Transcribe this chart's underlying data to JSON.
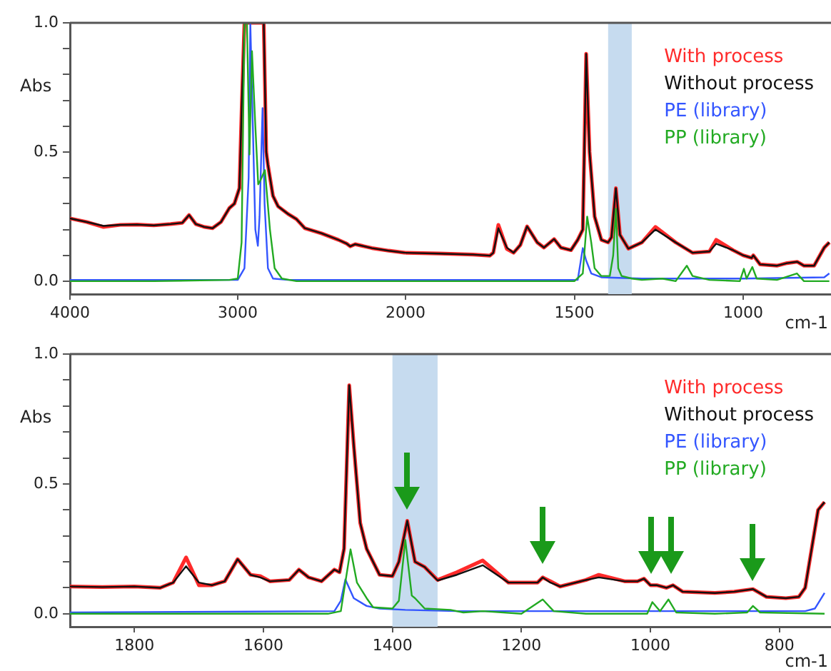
{
  "chart_data": [
    {
      "type": "line",
      "ylabel": "Abs",
      "xlim": [
        4000,
        2000
      ],
      "xticks": [
        4000,
        3000,
        2000
      ],
      "ylim": [
        -0.05,
        1.0
      ],
      "yticks": [
        {
          "value": 0,
          "label": "0.0"
        },
        {
          "value": 0.1,
          "label": null
        },
        {
          "value": 0.2,
          "label": null
        },
        {
          "value": 0.3,
          "label": null
        },
        {
          "value": 0.4,
          "label": null
        },
        {
          "value": 0.5,
          "label": "0.5"
        },
        {
          "value": 0.6,
          "label": null
        },
        {
          "value": 0.7,
          "label": null
        },
        {
          "value": 0.8,
          "label": null
        },
        {
          "value": 0.9,
          "label": null
        },
        {
          "value": 1.0,
          "label": "1.0"
        }
      ],
      "grid": false,
      "marker": "none",
      "line_style": "solid",
      "series": [
        {
          "color": "#ff2a2a",
          "x": [
            4000,
            3900,
            3800,
            3700,
            3600,
            3500,
            3400,
            3330,
            3290,
            3250,
            3200,
            3150,
            3100,
            3050,
            3020,
            2990,
            2975,
            2960,
            2900,
            2845,
            2830,
            2820,
            2790,
            2760,
            2700,
            2650,
            2600,
            2500,
            2400,
            2350,
            2330,
            2300,
            2200,
            2100,
            2000
          ],
          "values": [
            0.243,
            0.229,
            0.21,
            0.218,
            0.219,
            0.216,
            0.221,
            0.226,
            0.256,
            0.221,
            0.21,
            0.205,
            0.229,
            0.283,
            0.3,
            0.36,
            0.7,
            1.0,
            1.0,
            1.0,
            0.5,
            0.45,
            0.33,
            0.29,
            0.26,
            0.24,
            0.205,
            0.185,
            0.16,
            0.145,
            0.135,
            0.143,
            0.128,
            0.118,
            0.11
          ]
        },
        {
          "color": "#111111",
          "x": [
            4000,
            3900,
            3800,
            3700,
            3600,
            3500,
            3400,
            3330,
            3290,
            3250,
            3200,
            3150,
            3100,
            3050,
            3020,
            2990,
            2975,
            2960,
            2900,
            2845,
            2830,
            2820,
            2790,
            2760,
            2700,
            2650,
            2600,
            2500,
            2400,
            2350,
            2330,
            2300,
            2200,
            2100,
            2000
          ],
          "values": [
            0.243,
            0.229,
            0.214,
            0.218,
            0.219,
            0.216,
            0.221,
            0.226,
            0.256,
            0.221,
            0.21,
            0.205,
            0.229,
            0.283,
            0.3,
            0.36,
            0.7,
            1.0,
            1.0,
            1.0,
            0.5,
            0.45,
            0.33,
            0.29,
            0.26,
            0.24,
            0.205,
            0.185,
            0.16,
            0.145,
            0.135,
            0.143,
            0.128,
            0.118,
            0.11
          ]
        },
        {
          "color": "#3355ff",
          "x": [
            4000,
            3500,
            3000,
            2960,
            2935,
            2925,
            2920,
            2910,
            2895,
            2880,
            2870,
            2852,
            2840,
            2820,
            2790,
            2700,
            2000
          ],
          "values": [
            0.005,
            0.005,
            0.005,
            0.05,
            0.4,
            1.0,
            1.0,
            0.6,
            0.2,
            0.137,
            0.25,
            0.67,
            0.3,
            0.05,
            0.01,
            0.005,
            0.005
          ]
        },
        {
          "color": "#22aa22",
          "x": [
            4000,
            3500,
            3050,
            3000,
            2977,
            2960,
            2945,
            2930,
            2915,
            2895,
            2878,
            2865,
            2838,
            2808,
            2780,
            2737,
            2650,
            2000
          ],
          "values": [
            0.0,
            0.0,
            0.005,
            0.01,
            0.15,
            1.0,
            1.0,
            0.49,
            0.89,
            0.6,
            0.375,
            0.39,
            0.43,
            0.2,
            0.05,
            0.01,
            0.0,
            0.0
          ]
        }
      ]
    },
    {
      "type": "line",
      "xlabel": "cm-1",
      "xlim": [
        2000,
        740
      ],
      "xticks": [
        1500,
        1000
      ],
      "ylim": [
        -0.05,
        1.0
      ],
      "tick_labels": "x",
      "grid": false,
      "legend": "top right",
      "marker": "none",
      "line_style": "solid",
      "bands": [
        {
          "axis": "x",
          "from": 1400,
          "to": 1330,
          "color": "#c6dbef"
        }
      ],
      "series": [
        {
          "name": "With process",
          "color": "#ff2a2a",
          "x": [
            2000,
            1900,
            1800,
            1750,
            1740,
            1725,
            1700,
            1680,
            1660,
            1640,
            1610,
            1590,
            1560,
            1540,
            1510,
            1490,
            1475,
            1465,
            1455,
            1440,
            1420,
            1400,
            1390,
            1377,
            1365,
            1340,
            1300,
            1260,
            1200,
            1150,
            1100,
            1080,
            1030,
            1000,
            975,
            970,
            950,
            900,
            870,
            840,
            820,
            790,
            760,
            745
          ],
          "values": [
            0.11,
            0.107,
            0.103,
            0.099,
            0.11,
            0.218,
            0.125,
            0.11,
            0.14,
            0.212,
            0.15,
            0.13,
            0.163,
            0.13,
            0.12,
            0.16,
            0.2,
            0.88,
            0.5,
            0.25,
            0.16,
            0.15,
            0.17,
            0.36,
            0.18,
            0.126,
            0.15,
            0.21,
            0.15,
            0.11,
            0.115,
            0.16,
            0.12,
            0.1,
            0.09,
            0.1,
            0.065,
            0.06,
            0.07,
            0.075,
            0.06,
            0.06,
            0.13,
            0.15
          ]
        },
        {
          "name": "Without process",
          "color": "#111111",
          "x": [
            2000,
            1900,
            1800,
            1750,
            1740,
            1725,
            1700,
            1680,
            1660,
            1640,
            1610,
            1590,
            1560,
            1540,
            1510,
            1490,
            1475,
            1465,
            1455,
            1440,
            1420,
            1400,
            1390,
            1377,
            1365,
            1340,
            1300,
            1260,
            1200,
            1150,
            1100,
            1080,
            1030,
            1000,
            975,
            970,
            950,
            900,
            870,
            840,
            820,
            790,
            760,
            745
          ],
          "values": [
            0.11,
            0.107,
            0.103,
            0.099,
            0.11,
            0.205,
            0.13,
            0.11,
            0.14,
            0.212,
            0.15,
            0.13,
            0.163,
            0.13,
            0.12,
            0.16,
            0.2,
            0.88,
            0.5,
            0.25,
            0.16,
            0.15,
            0.17,
            0.36,
            0.18,
            0.126,
            0.15,
            0.2,
            0.15,
            0.11,
            0.115,
            0.145,
            0.12,
            0.1,
            0.09,
            0.1,
            0.065,
            0.06,
            0.07,
            0.075,
            0.06,
            0.06,
            0.13,
            0.15
          ]
        },
        {
          "name": "PE (library)",
          "color": "#3355ff",
          "x": [
            2000,
            1490,
            1475,
            1465,
            1450,
            1420,
            1300,
            1000,
            760,
            745
          ],
          "values": [
            0.005,
            0.005,
            0.128,
            0.08,
            0.03,
            0.015,
            0.01,
            0.01,
            0.015,
            0.03
          ]
        },
        {
          "name": "PP (library)",
          "color": "#22aa22",
          "x": [
            2000,
            1500,
            1475,
            1462,
            1450,
            1440,
            1420,
            1395,
            1385,
            1377,
            1370,
            1360,
            1330,
            1300,
            1240,
            1200,
            1167,
            1150,
            1100,
            1010,
            998,
            990,
            973,
            960,
            900,
            841,
            820,
            745
          ],
          "values": [
            0.0,
            0.0,
            0.03,
            0.25,
            0.15,
            0.05,
            0.02,
            0.02,
            0.1,
            0.28,
            0.05,
            0.02,
            0.01,
            0.005,
            0.01,
            0.0,
            0.06,
            0.02,
            0.005,
            0.0,
            0.048,
            0.01,
            0.055,
            0.01,
            0.005,
            0.03,
            0.0,
            0.0
          ]
        }
      ]
    },
    {
      "type": "line",
      "ylabel": "Abs",
      "xlabel": "cm-1",
      "xlim": [
        1900,
        720
      ],
      "xticks": [
        1800,
        1600,
        1400,
        1200,
        1000,
        800
      ],
      "ylim": [
        -0.05,
        1.0
      ],
      "yticks": [
        {
          "value": 0,
          "label": "0.0"
        },
        {
          "value": 0.1,
          "label": null
        },
        {
          "value": 0.2,
          "label": null
        },
        {
          "value": 0.3,
          "label": null
        },
        {
          "value": 0.4,
          "label": null
        },
        {
          "value": 0.5,
          "label": "0.5"
        },
        {
          "value": 0.6,
          "label": null
        },
        {
          "value": 0.7,
          "label": null
        },
        {
          "value": 0.8,
          "label": null
        },
        {
          "value": 0.9,
          "label": null
        },
        {
          "value": 1.0,
          "label": "1.0"
        }
      ],
      "grid": false,
      "legend": "top right",
      "marker": "none",
      "line_style": "solid",
      "bands": [
        {
          "axis": "x",
          "from": 1400,
          "to": 1330,
          "color": "#c6dbef"
        }
      ],
      "series": [
        {
          "name": "With process",
          "color": "#ff2a2a",
          "x": [
            1900,
            1850,
            1800,
            1760,
            1740,
            1720,
            1700,
            1680,
            1660,
            1640,
            1620,
            1605,
            1590,
            1560,
            1545,
            1530,
            1510,
            1490,
            1482,
            1475,
            1467,
            1460,
            1450,
            1440,
            1420,
            1400,
            1390,
            1377,
            1365,
            1350,
            1330,
            1300,
            1260,
            1220,
            1200,
            1175,
            1167,
            1155,
            1140,
            1100,
            1080,
            1040,
            1020,
            1010,
            1000,
            990,
            975,
            965,
            950,
            900,
            870,
            841,
            820,
            790,
            770,
            760,
            750,
            740,
            730
          ],
          "values": [
            0.105,
            0.103,
            0.105,
            0.1,
            0.12,
            0.217,
            0.11,
            0.11,
            0.125,
            0.21,
            0.15,
            0.145,
            0.125,
            0.13,
            0.17,
            0.14,
            0.125,
            0.17,
            0.16,
            0.25,
            0.88,
            0.65,
            0.35,
            0.25,
            0.15,
            0.145,
            0.2,
            0.358,
            0.2,
            0.18,
            0.13,
            0.16,
            0.205,
            0.12,
            0.12,
            0.12,
            0.14,
            0.125,
            0.105,
            0.13,
            0.15,
            0.125,
            0.125,
            0.135,
            0.11,
            0.11,
            0.1,
            0.11,
            0.085,
            0.08,
            0.085,
            0.095,
            0.065,
            0.06,
            0.065,
            0.1,
            0.25,
            0.4,
            0.43
          ]
        },
        {
          "name": "Without process",
          "color": "#111111",
          "x": [
            1900,
            1850,
            1800,
            1760,
            1740,
            1720,
            1700,
            1680,
            1660,
            1640,
            1620,
            1605,
            1590,
            1560,
            1545,
            1530,
            1510,
            1490,
            1482,
            1475,
            1467,
            1460,
            1450,
            1440,
            1420,
            1400,
            1390,
            1377,
            1365,
            1350,
            1330,
            1300,
            1260,
            1220,
            1200,
            1175,
            1167,
            1155,
            1140,
            1100,
            1080,
            1040,
            1020,
            1010,
            1000,
            990,
            975,
            965,
            950,
            900,
            870,
            841,
            820,
            790,
            770,
            760,
            750,
            740,
            730
          ],
          "values": [
            0.105,
            0.103,
            0.105,
            0.1,
            0.12,
            0.183,
            0.12,
            0.11,
            0.125,
            0.21,
            0.15,
            0.14,
            0.125,
            0.13,
            0.17,
            0.14,
            0.125,
            0.17,
            0.16,
            0.25,
            0.88,
            0.65,
            0.35,
            0.25,
            0.15,
            0.145,
            0.2,
            0.358,
            0.2,
            0.18,
            0.128,
            0.15,
            0.187,
            0.12,
            0.12,
            0.12,
            0.14,
            0.12,
            0.105,
            0.13,
            0.14,
            0.125,
            0.125,
            0.135,
            0.11,
            0.11,
            0.1,
            0.11,
            0.085,
            0.08,
            0.085,
            0.095,
            0.065,
            0.06,
            0.065,
            0.1,
            0.25,
            0.4,
            0.43
          ]
        },
        {
          "name": "PE (library)",
          "color": "#3355ff",
          "x": [
            1900,
            1490,
            1480,
            1473,
            1460,
            1440,
            1420,
            1380,
            1300,
            760,
            745,
            730
          ],
          "values": [
            0.005,
            0.01,
            0.05,
            0.132,
            0.06,
            0.03,
            0.02,
            0.015,
            0.01,
            0.01,
            0.02,
            0.08
          ]
        },
        {
          "name": "PP (library)",
          "color": "#22aa22",
          "x": [
            1900,
            1500,
            1480,
            1465,
            1455,
            1440,
            1430,
            1400,
            1390,
            1380,
            1370,
            1365,
            1350,
            1310,
            1290,
            1260,
            1200,
            1167,
            1150,
            1100,
            1005,
            997,
            985,
            972,
            960,
            900,
            850,
            841,
            830,
            730
          ],
          "values": [
            0.0,
            0.0,
            0.01,
            0.248,
            0.12,
            0.06,
            0.025,
            0.02,
            0.05,
            0.284,
            0.07,
            0.06,
            0.02,
            0.015,
            0.005,
            0.01,
            0.0,
            0.055,
            0.01,
            0.0,
            0.0,
            0.045,
            0.01,
            0.055,
            0.005,
            0.0,
            0.005,
            0.03,
            0.005,
            0.0
          ]
        }
      ]
    }
  ]
}
